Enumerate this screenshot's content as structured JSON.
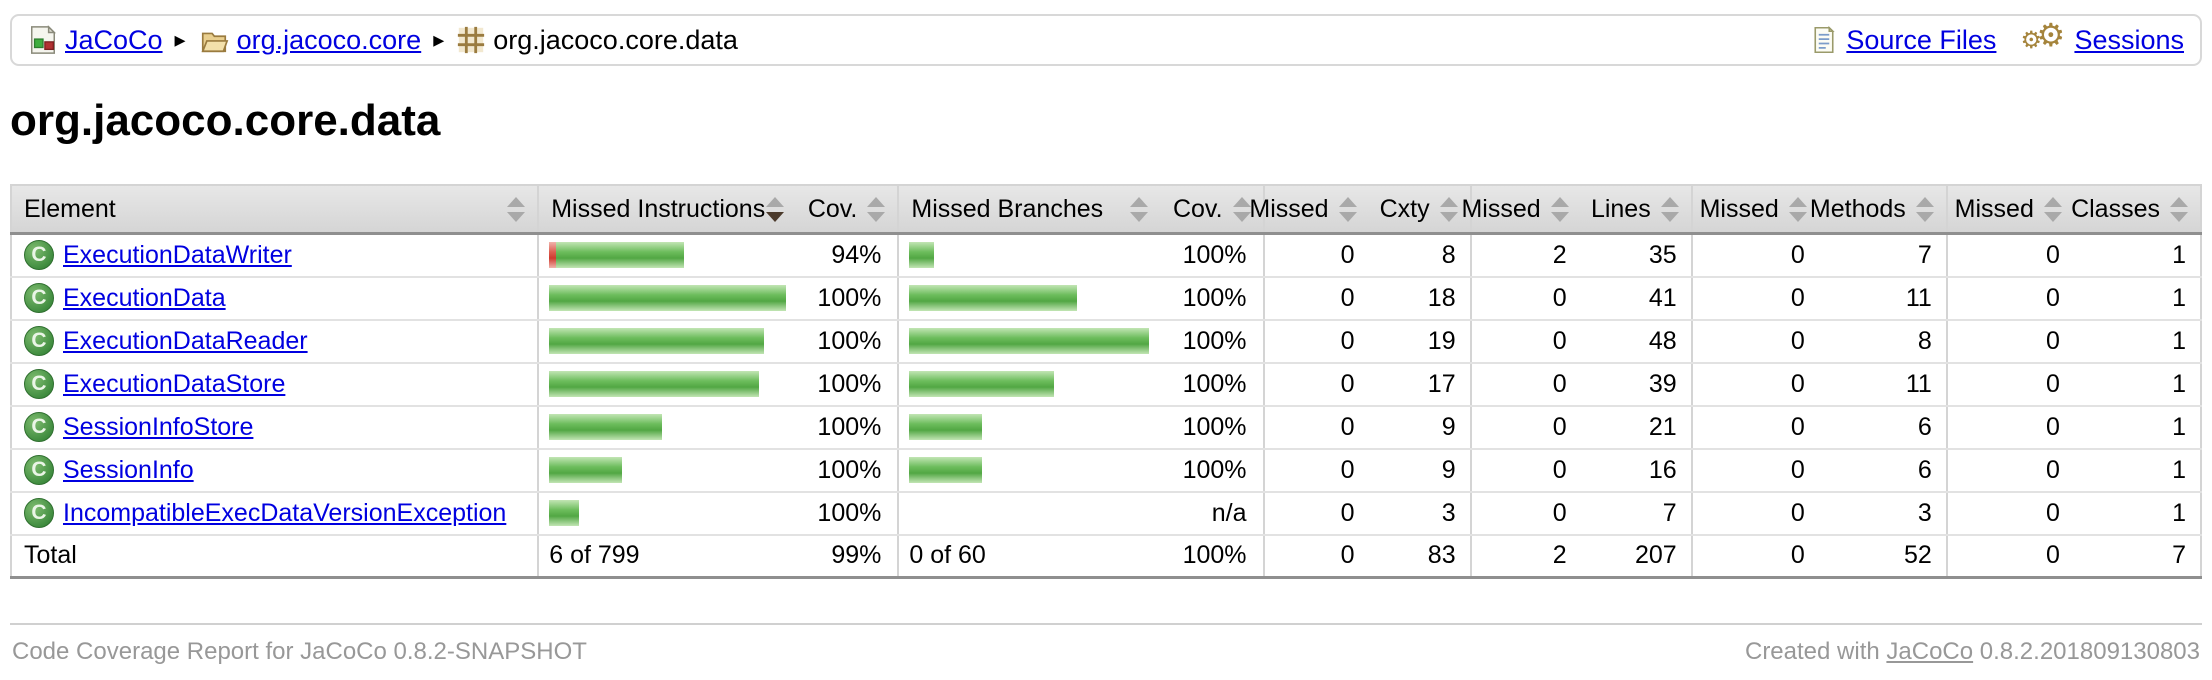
{
  "breadcrumb": {
    "items": [
      {
        "label": "JaCoCo",
        "icon": "report-icon"
      },
      {
        "label": "org.jacoco.core",
        "icon": "package-open-icon"
      },
      {
        "label": "org.jacoco.core.data",
        "icon": "package-icon"
      }
    ]
  },
  "header_links": {
    "source_files": "Source Files",
    "sessions": "Sessions"
  },
  "page_title": "org.jacoco.core.data",
  "icons": {
    "class_letter": "C",
    "breadcrumb_separator": "▸",
    "gear": "⚙"
  },
  "table": {
    "sort": {
      "column": "Missed Instructions",
      "direction": "desc"
    },
    "columns": [
      "Element",
      "Missed Instructions",
      "Cov.",
      "Missed Branches",
      "Cov.",
      "Missed",
      "Cxty",
      "Missed",
      "Lines",
      "Missed",
      "Methods",
      "Missed",
      "Classes"
    ],
    "rows": [
      {
        "name": "ExecutionDataWriter",
        "instr_red": 7,
        "instr_green": 128,
        "instr_cov": "94%",
        "branch_green": 25,
        "branch_cov": "100%",
        "missed_cxty": "0",
        "cxty": "8",
        "missed_lines": "2",
        "lines": "35",
        "missed_methods": "0",
        "methods": "7",
        "missed_classes": "0",
        "classes": "1"
      },
      {
        "name": "ExecutionData",
        "instr_red": 0,
        "instr_green": 242,
        "instr_cov": "100%",
        "branch_green": 168,
        "branch_cov": "100%",
        "missed_cxty": "0",
        "cxty": "18",
        "missed_lines": "0",
        "lines": "41",
        "missed_methods": "0",
        "methods": "11",
        "missed_classes": "0",
        "classes": "1"
      },
      {
        "name": "ExecutionDataReader",
        "instr_red": 0,
        "instr_green": 215,
        "instr_cov": "100%",
        "branch_green": 240,
        "branch_cov": "100%",
        "missed_cxty": "0",
        "cxty": "19",
        "missed_lines": "0",
        "lines": "48",
        "missed_methods": "0",
        "methods": "8",
        "missed_classes": "0",
        "classes": "1"
      },
      {
        "name": "ExecutionDataStore",
        "instr_red": 0,
        "instr_green": 210,
        "instr_cov": "100%",
        "branch_green": 145,
        "branch_cov": "100%",
        "missed_cxty": "0",
        "cxty": "17",
        "missed_lines": "0",
        "lines": "39",
        "missed_methods": "0",
        "methods": "11",
        "missed_classes": "0",
        "classes": "1"
      },
      {
        "name": "SessionInfoStore",
        "instr_red": 0,
        "instr_green": 113,
        "instr_cov": "100%",
        "branch_green": 73,
        "branch_cov": "100%",
        "missed_cxty": "0",
        "cxty": "9",
        "missed_lines": "0",
        "lines": "21",
        "missed_methods": "0",
        "methods": "6",
        "missed_classes": "0",
        "classes": "1"
      },
      {
        "name": "SessionInfo",
        "instr_red": 0,
        "instr_green": 73,
        "instr_cov": "100%",
        "branch_green": 73,
        "branch_cov": "100%",
        "missed_cxty": "0",
        "cxty": "9",
        "missed_lines": "0",
        "lines": "16",
        "missed_methods": "0",
        "methods": "6",
        "missed_classes": "0",
        "classes": "1"
      },
      {
        "name": "IncompatibleExecDataVersionException",
        "instr_red": 0,
        "instr_green": 30,
        "instr_cov": "100%",
        "branch_green": 0,
        "branch_cov": "n/a",
        "missed_cxty": "0",
        "cxty": "3",
        "missed_lines": "0",
        "lines": "7",
        "missed_methods": "0",
        "methods": "3",
        "missed_classes": "0",
        "classes": "1"
      }
    ],
    "total": {
      "label": "Total",
      "instr": "6 of 799",
      "instr_cov": "99%",
      "branch": "0 of 60",
      "branch_cov": "100%",
      "missed_cxty": "0",
      "cxty": "83",
      "missed_lines": "2",
      "lines": "207",
      "missed_methods": "0",
      "methods": "52",
      "missed_classes": "0",
      "classes": "7"
    }
  },
  "footer": {
    "left": "Code Coverage Report for JaCoCo 0.8.2-SNAPSHOT",
    "right_prefix": "Created with ",
    "right_link": "JaCoCo",
    "right_suffix": " 0.8.2.201809130803"
  }
}
